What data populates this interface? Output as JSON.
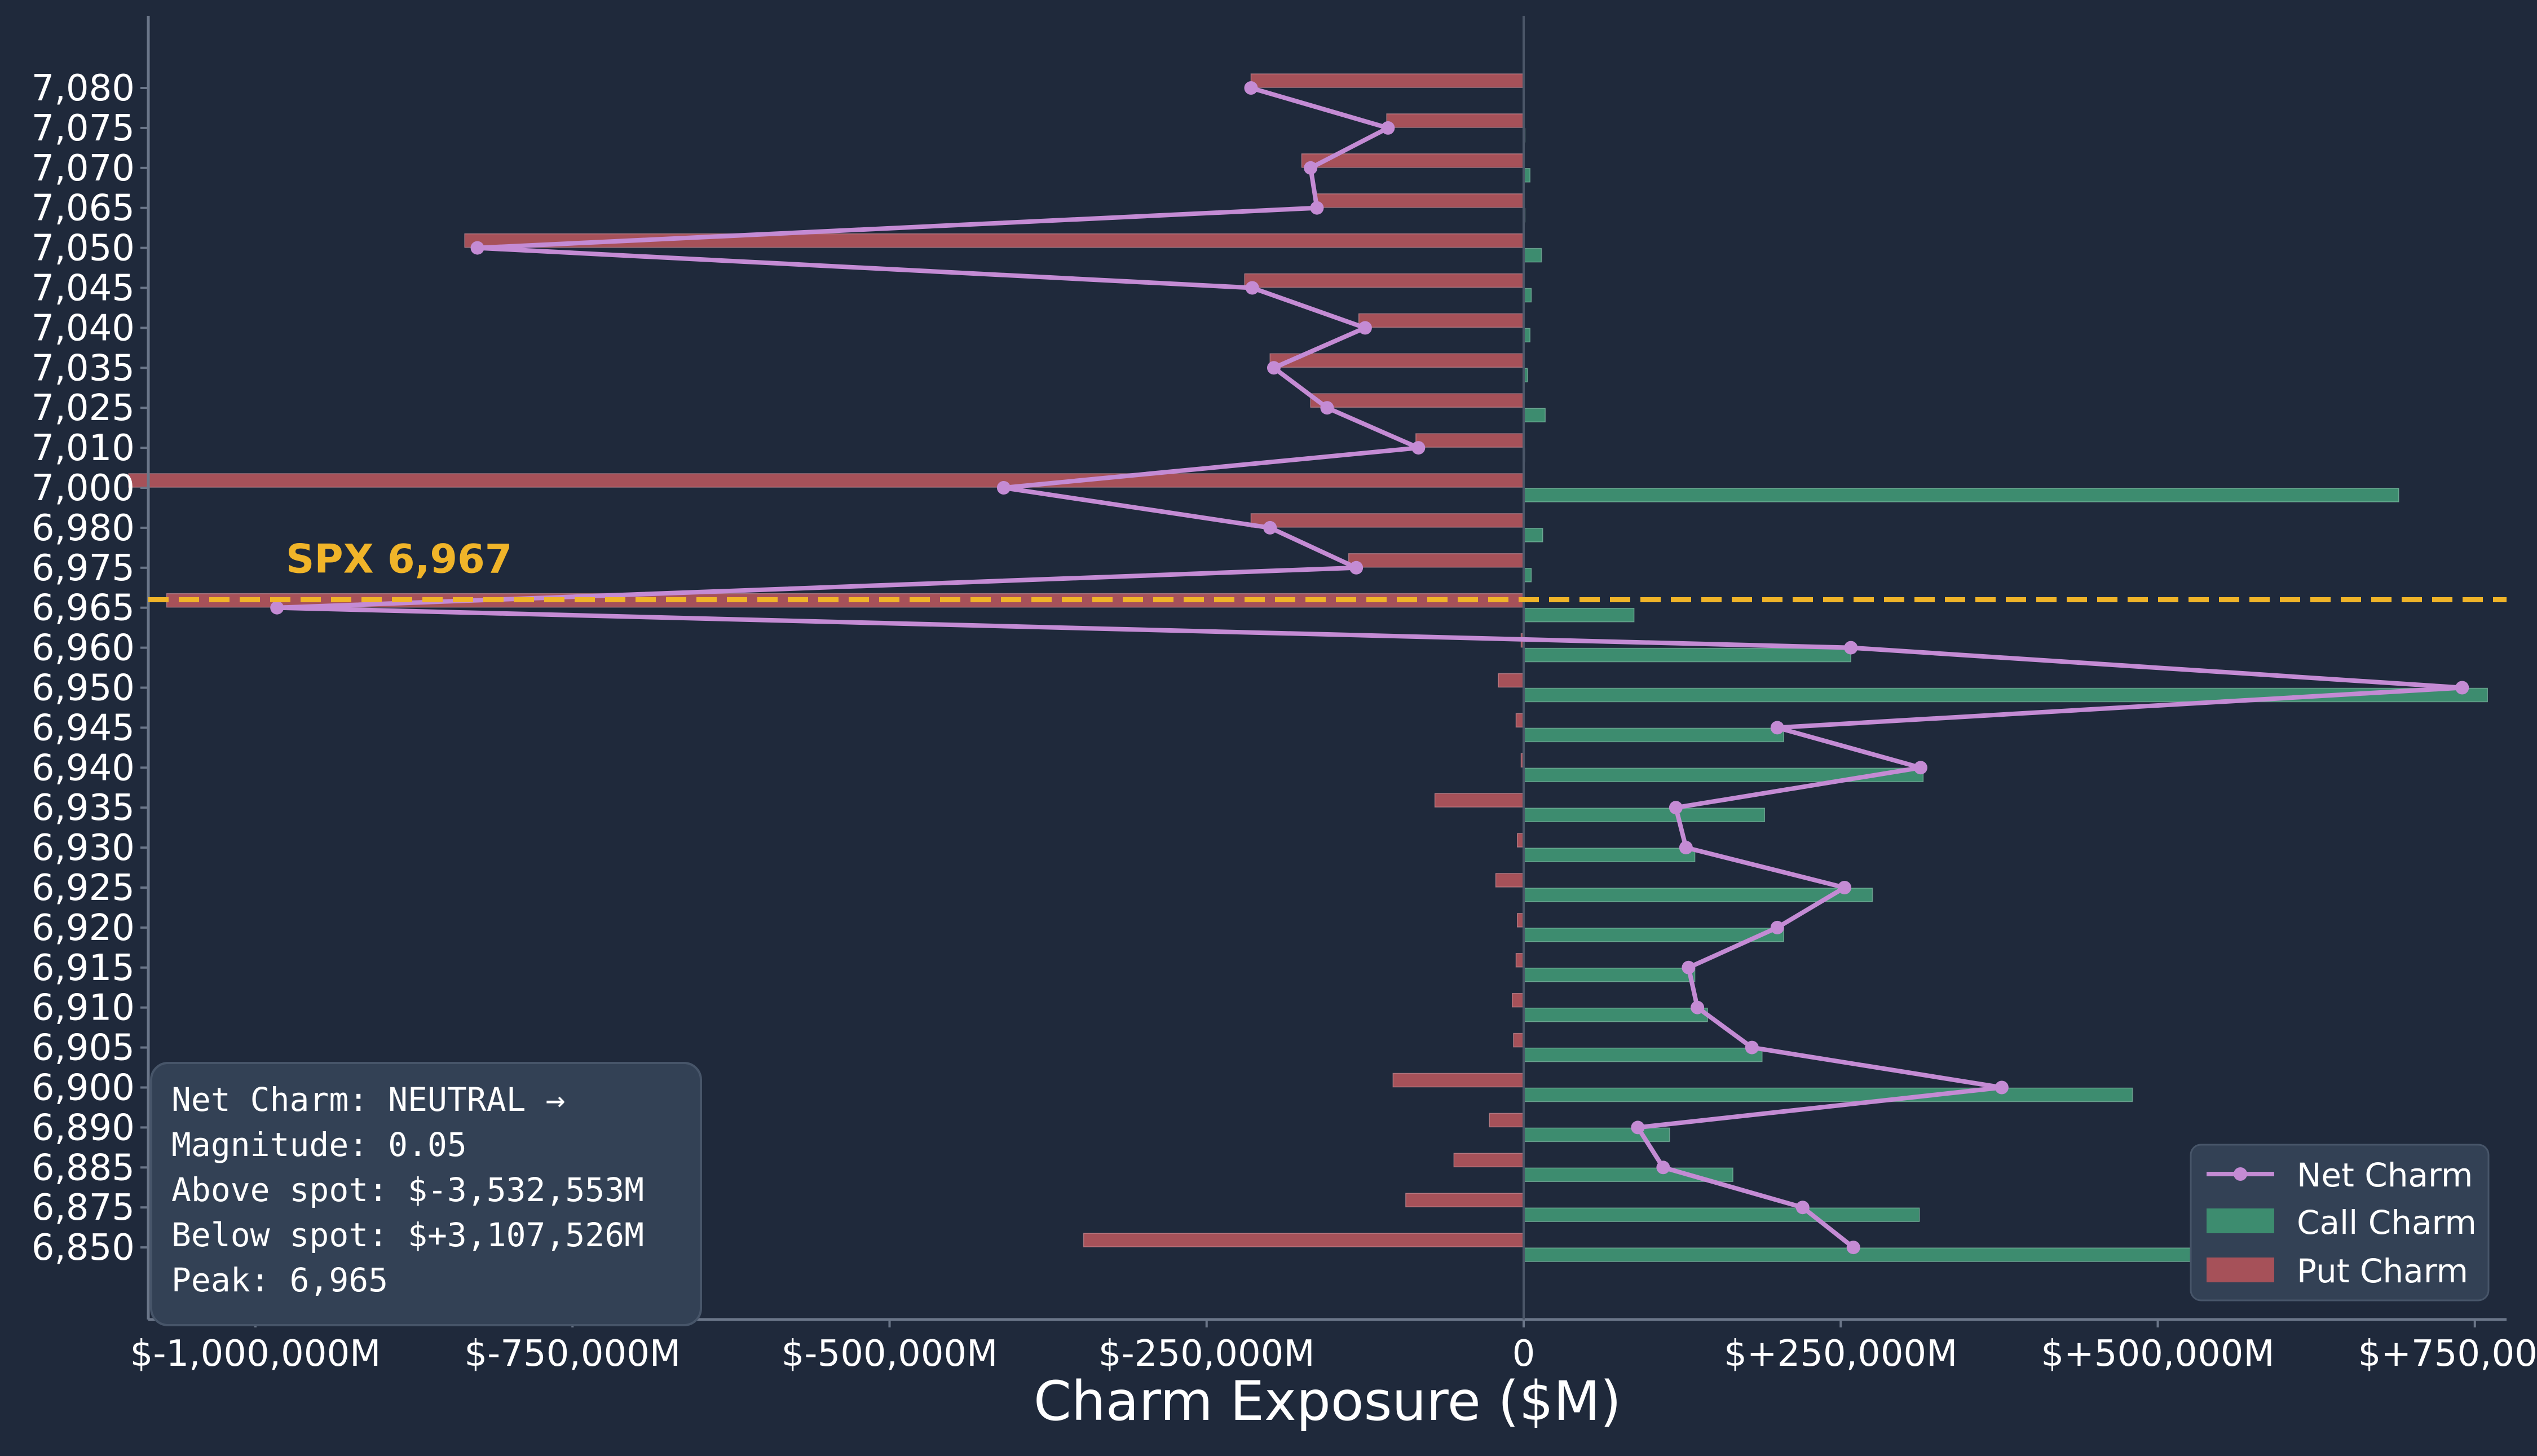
{
  "chart_data": {
    "type": "bar",
    "orientation": "horizontal",
    "xlabel": "Charm Exposure ($M)",
    "ylabel": "",
    "xlim": [
      -1200000,
      850000
    ],
    "x_ticks": [
      {
        "value": -1000000,
        "label": "$-1,000,000M"
      },
      {
        "value": -750000,
        "label": "$-750,000M"
      },
      {
        "value": -500000,
        "label": "$-500,000M"
      },
      {
        "value": -250000,
        "label": "$-250,000M"
      },
      {
        "value": 0,
        "label": "0"
      },
      {
        "value": 250000,
        "label": "$+250,000M"
      },
      {
        "value": 500000,
        "label": "$+500,000M"
      },
      {
        "value": 750000,
        "label": "$+750,000M"
      }
    ],
    "categories": [
      "7,080",
      "7,075",
      "7,070",
      "7,065",
      "7,050",
      "7,045",
      "7,040",
      "7,035",
      "7,025",
      "7,010",
      "7,000",
      "6,980",
      "6,975",
      "6,965",
      "6,960",
      "6,950",
      "6,945",
      "6,940",
      "6,935",
      "6,930",
      "6,925",
      "6,920",
      "6,915",
      "6,910",
      "6,905",
      "6,900",
      "6,890",
      "6,885",
      "6,875",
      "6,850"
    ],
    "series": [
      {
        "name": "Call Charm",
        "type": "bar",
        "color": "#3d8c6f",
        "values": [
          0,
          1000,
          5000,
          1000,
          14000,
          6000,
          5000,
          3000,
          17000,
          500,
          690000,
          15000,
          6000,
          87000,
          258000,
          760000,
          205000,
          315000,
          190000,
          135000,
          275000,
          205000,
          135000,
          145000,
          188000,
          480000,
          115000,
          165000,
          312000,
          605000
        ]
      },
      {
        "name": "Put Charm",
        "type": "bar",
        "color": "#a65159",
        "values": [
          -215000,
          -108000,
          -175000,
          -165000,
          -835000,
          -220000,
          -130000,
          -200000,
          -168000,
          -85000,
          -1100000,
          -215000,
          -138000,
          -1070000,
          -2000,
          -20000,
          -6000,
          -2000,
          -70000,
          -5000,
          -22000,
          -5000,
          -6000,
          -9000,
          -8000,
          -103000,
          -27000,
          -55000,
          -93000,
          -347000
        ]
      },
      {
        "name": "Net Charm",
        "type": "line",
        "color": "#c48bd4",
        "values": [
          -215000,
          -107000,
          -168000,
          -163000,
          -825000,
          -214000,
          -125000,
          -197000,
          -155000,
          -83000,
          -410000,
          -200000,
          -132000,
          -983000,
          258000,
          740000,
          200000,
          313000,
          120000,
          128000,
          253000,
          200000,
          130000,
          137000,
          180000,
          377000,
          90000,
          110000,
          220000,
          260000
        ]
      }
    ],
    "spot": {
      "value": 6967,
      "label": "SPX 6,967",
      "color": "#f0b429"
    },
    "legend_position": "bottom-right",
    "grid": false
  },
  "stats_box": {
    "lines": [
      "Net Charm: NEUTRAL →",
      "Magnitude: 0.05",
      "Above spot: $-3,532,553M",
      "Below spot: $+3,107,526M",
      "Peak: 6,965"
    ]
  },
  "colors": {
    "background": "#1f293b",
    "axis": "#6b7689",
    "text": "#ffffff",
    "box_bg": "#334155"
  }
}
